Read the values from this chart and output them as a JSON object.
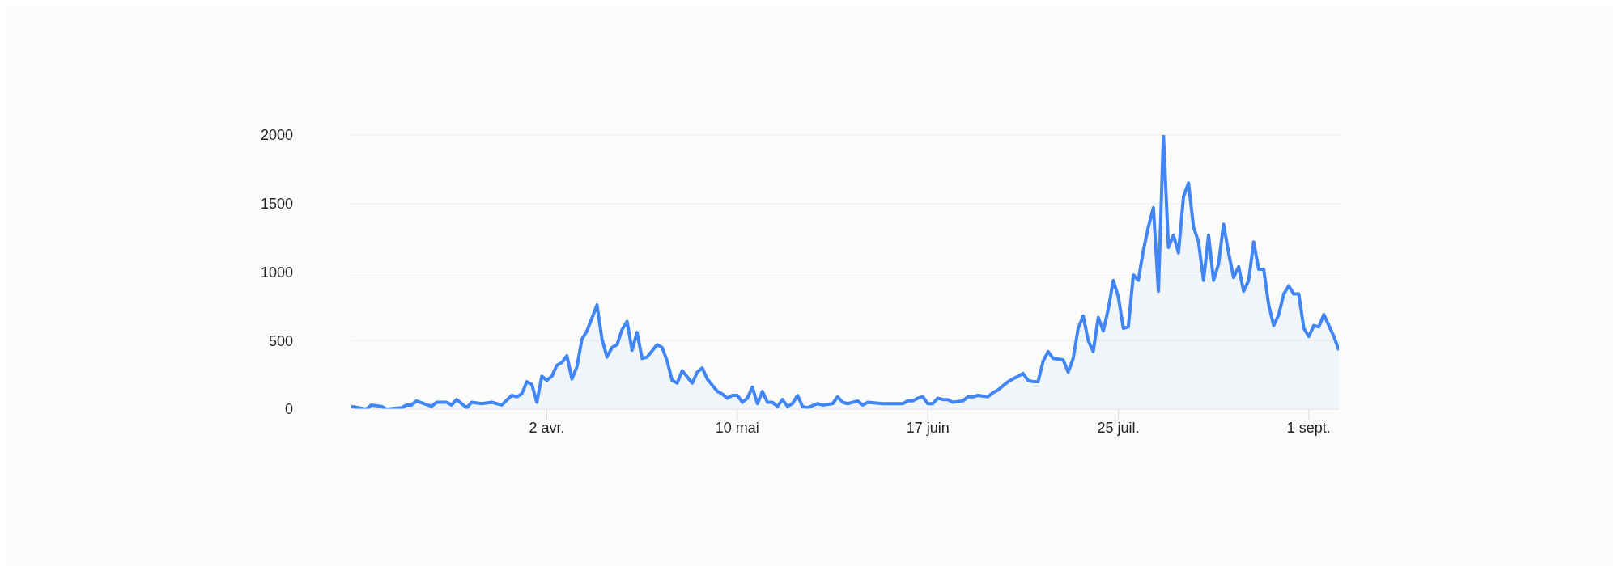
{
  "chart_data": {
    "type": "area",
    "x": [
      "--02-22",
      "--02-25",
      "--02-26",
      "--02-28",
      "--03-01",
      "--03-04",
      "--03-05",
      "--03-06",
      "--03-07",
      "--03-10",
      "--03-11",
      "--03-13",
      "--03-14",
      "--03-15",
      "--03-17",
      "--03-18",
      "--03-20",
      "--03-22",
      "--03-24",
      "--03-26",
      "--03-27",
      "--03-28",
      "--03-29",
      "--03-30",
      "--03-31",
      "--04-01",
      "--04-02",
      "--04-03",
      "--04-04",
      "--04-05",
      "--04-06",
      "--04-07",
      "--04-08",
      "--04-09",
      "--04-10",
      "--04-12",
      "--04-13",
      "--04-14",
      "--04-15",
      "--04-16",
      "--04-17",
      "--04-18",
      "--04-19",
      "--04-20",
      "--04-21",
      "--04-22",
      "--04-24",
      "--04-25",
      "--04-26",
      "--04-27",
      "--04-28",
      "--04-29",
      "--05-01",
      "--05-02",
      "--05-03",
      "--05-04",
      "--05-06",
      "--05-07",
      "--05-08",
      "--05-09",
      "--05-10",
      "--05-11",
      "--05-12",
      "--05-13",
      "--05-14",
      "--05-15",
      "--05-16",
      "--05-17",
      "--05-18",
      "--05-19",
      "--05-20",
      "--05-21",
      "--05-22",
      "--05-23",
      "--05-24",
      "--05-26",
      "--05-27",
      "--05-29",
      "--05-30",
      "--05-31",
      "--06-01",
      "--06-03",
      "--06-04",
      "--06-05",
      "--06-08",
      "--06-10",
      "--06-12",
      "--06-13",
      "--06-14",
      "--06-15",
      "--06-16",
      "--06-17",
      "--06-18",
      "--06-19",
      "--06-20",
      "--06-21",
      "--06-22",
      "--06-24",
      "--06-25",
      "--06-26",
      "--06-27",
      "--06-29",
      "--06-30",
      "--07-01",
      "--07-03",
      "--07-05",
      "--07-06",
      "--07-07",
      "--07-08",
      "--07-09",
      "--07-10",
      "--07-11",
      "--07-12",
      "--07-14",
      "--07-15",
      "--07-16",
      "--07-17",
      "--07-18",
      "--07-19",
      "--07-20",
      "--07-21",
      "--07-22",
      "--07-23",
      "--07-24",
      "--07-25",
      "--07-26",
      "--07-27",
      "--07-28",
      "--07-29",
      "--07-30",
      "--07-31",
      "--08-01",
      "--08-02",
      "--08-03",
      "--08-04",
      "--08-05",
      "--08-06",
      "--08-07",
      "--08-08",
      "--08-09",
      "--08-10",
      "--08-11",
      "--08-12",
      "--08-13",
      "--08-14",
      "--08-15",
      "--08-16",
      "--08-17",
      "--08-18",
      "--08-19",
      "--08-20",
      "--08-21",
      "--08-22",
      "--08-23",
      "--08-24",
      "--08-25",
      "--08-26",
      "--08-27",
      "--08-28",
      "--08-29",
      "--08-30",
      "--08-31",
      "--09-01",
      "--09-02",
      "--09-03",
      "--09-04",
      "--09-05",
      "--09-06",
      "--09-07"
    ],
    "values": [
      20,
      0,
      30,
      20,
      0,
      10,
      30,
      30,
      60,
      20,
      50,
      50,
      30,
      70,
      10,
      50,
      40,
      50,
      30,
      100,
      90,
      110,
      200,
      180,
      50,
      240,
      210,
      240,
      320,
      340,
      390,
      220,
      310,
      510,
      570,
      760,
      510,
      380,
      450,
      470,
      580,
      640,
      430,
      560,
      370,
      380,
      470,
      450,
      350,
      210,
      190,
      280,
      190,
      270,
      300,
      220,
      130,
      110,
      80,
      100,
      100,
      50,
      80,
      160,
      40,
      130,
      50,
      50,
      20,
      70,
      20,
      40,
      100,
      20,
      10,
      40,
      30,
      40,
      90,
      50,
      40,
      60,
      30,
      50,
      40,
      40,
      40,
      60,
      60,
      80,
      90,
      40,
      40,
      80,
      70,
      70,
      50,
      60,
      90,
      90,
      100,
      90,
      120,
      140,
      200,
      240,
      260,
      210,
      200,
      200,
      350,
      420,
      370,
      360,
      270,
      370,
      590,
      680,
      500,
      420,
      670,
      570,
      730,
      940,
      820,
      590,
      600,
      980,
      940,
      1160,
      1330,
      1470,
      860,
      2000,
      1180,
      1270,
      1140,
      1550,
      1650,
      1330,
      1220,
      940,
      1270,
      940,
      1060,
      1350,
      1140,
      960,
      1040,
      860,
      940,
      1220,
      1020,
      1020,
      760,
      610,
      690,
      840,
      900,
      840,
      840,
      590,
      530,
      610,
      600,
      690,
      610,
      530,
      430
    ],
    "color": "#4285f4",
    "xlim": [
      "--02-22",
      "--09-07"
    ],
    "xticks": [
      {
        "value": "--04-02",
        "label": "2 avr."
      },
      {
        "value": "--05-10",
        "label": "10 mai"
      },
      {
        "value": "--06-17",
        "label": "17 juin"
      },
      {
        "value": "--07-25",
        "label": "25 juil."
      },
      {
        "value": "--09-01",
        "label": "1 sept."
      }
    ],
    "ylim": [
      0,
      2000
    ],
    "yticks": [
      0,
      500,
      1000,
      1500,
      2000
    ],
    "grid": "y"
  }
}
